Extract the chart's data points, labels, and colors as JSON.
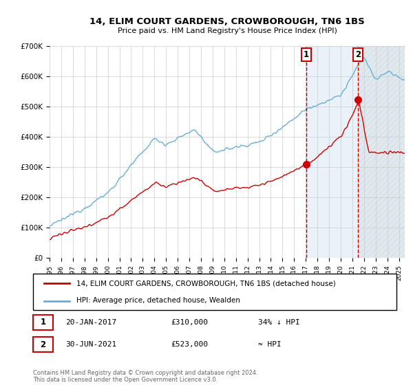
{
  "title": "14, ELIM COURT GARDENS, CROWBOROUGH, TN6 1BS",
  "subtitle": "Price paid vs. HM Land Registry's House Price Index (HPI)",
  "hpi_label": "HPI: Average price, detached house, Wealden",
  "property_label": "14, ELIM COURT GARDENS, CROWBOROUGH, TN6 1BS (detached house)",
  "sale1_date": "20-JAN-2017",
  "sale1_price": 310000,
  "sale1_note": "34% ↓ HPI",
  "sale2_date": "30-JUN-2021",
  "sale2_price": 523000,
  "sale2_note": "≈ HPI",
  "footer": "Contains HM Land Registry data © Crown copyright and database right 2024.\nThis data is licensed under the Open Government Licence v3.0.",
  "hpi_color": "#6aaed6",
  "property_color": "#cc0000",
  "marker_color": "#cc0000",
  "sale1_x_year": 2017.05,
  "sale2_x_year": 2021.5,
  "ylim_max": 700000,
  "ylim_min": 0,
  "xlim_min": 1995,
  "xlim_max": 2025.5,
  "shade_color": "#ddeeff"
}
